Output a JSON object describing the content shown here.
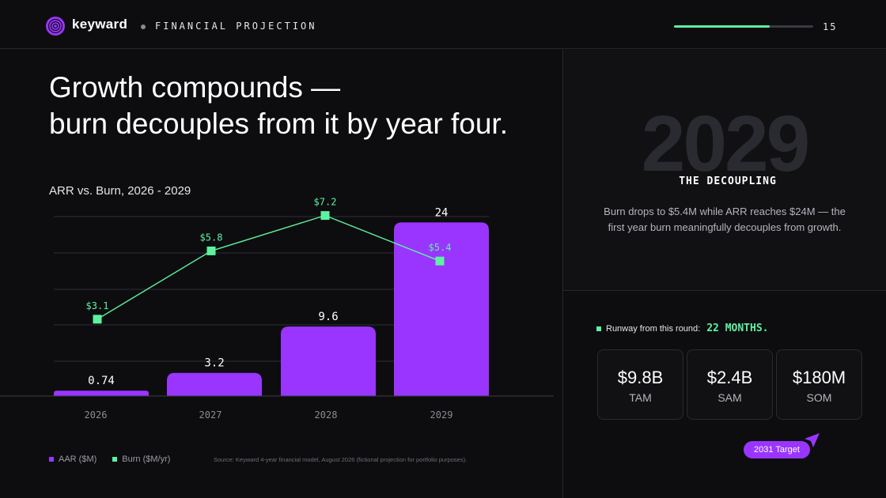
{
  "header": {
    "brand": "keyward",
    "section": "FINANCIAL PROJECTION",
    "page_number": "15",
    "progress_fraction": 0.69,
    "logo_icon": "fingerprint-icon"
  },
  "main": {
    "headline_line1": "Growth compounds —",
    "headline_line2": "burn decouples from it by year four.",
    "chart_title": "ARR vs. Burn, 2026 - 2029",
    "legend": {
      "arr": "AAR ($M)",
      "burn": "Burn ($M/yr)"
    },
    "source": "Source: Keyward 4-year financial model, August 2026 (fictional projection for portfolio purposes)."
  },
  "chart_data": {
    "type": "bar",
    "title": "ARR vs. Burn, 2026 - 2029",
    "xlabel": "",
    "ylabel": "",
    "categories": [
      "2026",
      "2027",
      "2028",
      "2029"
    ],
    "series": [
      {
        "name": "AAR ($M)",
        "type": "bar",
        "values": [
          0.74,
          3.2,
          9.6,
          24
        ],
        "labels": [
          "0.74",
          "3.2",
          "9.6",
          "24"
        ]
      },
      {
        "name": "Burn ($M/yr)",
        "type": "line",
        "values": [
          3.1,
          5.8,
          7.2,
          5.4
        ],
        "labels": [
          "$3.1",
          "$5.8",
          "$7.2",
          "$5.4"
        ]
      }
    ],
    "grid": true,
    "legend_position": "bottom-left",
    "colors": {
      "arr": "#9a35ff",
      "burn": "#5ef2a0"
    }
  },
  "callout": {
    "year": "2029",
    "label": "THE DECOUPLING",
    "body": "Burn drops to $5.4M while ARR reaches $24M — the first year burn meaningfully decouples from growth."
  },
  "runway": {
    "label": "Runway from this round:",
    "value": "22 MONTHS."
  },
  "market": [
    {
      "value": "$9.8B",
      "label": "TAM"
    },
    {
      "value": "$2.4B",
      "label": "SAM"
    },
    {
      "value": "$180M",
      "label": "SOM"
    }
  ],
  "target": {
    "label": "2031 Target",
    "icon": "cursor-arrow-icon"
  },
  "colors": {
    "accent_purple": "#9a35ff",
    "accent_green": "#5ef2a0",
    "background": "#0d0d10"
  }
}
